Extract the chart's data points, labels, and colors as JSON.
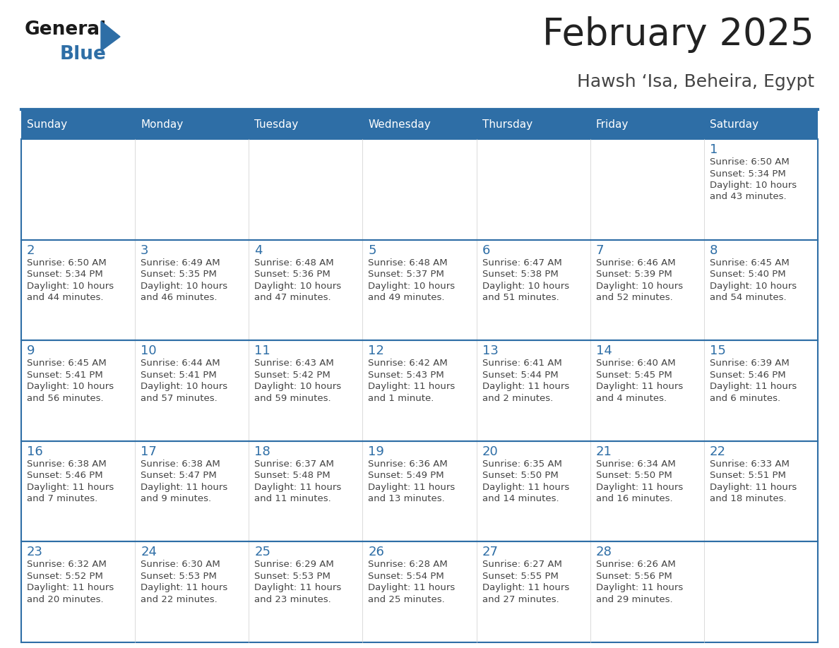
{
  "title": "February 2025",
  "subtitle": "Hawsh ‘Isa, Beheira, Egypt",
  "days_of_week": [
    "Sunday",
    "Monday",
    "Tuesday",
    "Wednesday",
    "Thursday",
    "Friday",
    "Saturday"
  ],
  "header_bg": "#2E6EA6",
  "header_text": "#FFFFFF",
  "cell_bg": "#FFFFFF",
  "cell_bg_alt": "#F2F2F2",
  "border_color": "#2E6EA6",
  "title_color": "#222222",
  "subtitle_color": "#444444",
  "day_number_color": "#2E6EA6",
  "cell_text_color": "#444444",
  "logo_text_color": "#1a1a1a",
  "logo_blue_color": "#2E6EA6",
  "calendar_data": [
    [
      null,
      null,
      null,
      null,
      null,
      null,
      {
        "day": 1,
        "sunrise": "6:50 AM",
        "sunset": "5:34 PM",
        "daylight": "10 hours and 43 minutes."
      }
    ],
    [
      {
        "day": 2,
        "sunrise": "6:50 AM",
        "sunset": "5:34 PM",
        "daylight": "10 hours and 44 minutes."
      },
      {
        "day": 3,
        "sunrise": "6:49 AM",
        "sunset": "5:35 PM",
        "daylight": "10 hours and 46 minutes."
      },
      {
        "day": 4,
        "sunrise": "6:48 AM",
        "sunset": "5:36 PM",
        "daylight": "10 hours and 47 minutes."
      },
      {
        "day": 5,
        "sunrise": "6:48 AM",
        "sunset": "5:37 PM",
        "daylight": "10 hours and 49 minutes."
      },
      {
        "day": 6,
        "sunrise": "6:47 AM",
        "sunset": "5:38 PM",
        "daylight": "10 hours and 51 minutes."
      },
      {
        "day": 7,
        "sunrise": "6:46 AM",
        "sunset": "5:39 PM",
        "daylight": "10 hours and 52 minutes."
      },
      {
        "day": 8,
        "sunrise": "6:45 AM",
        "sunset": "5:40 PM",
        "daylight": "10 hours and 54 minutes."
      }
    ],
    [
      {
        "day": 9,
        "sunrise": "6:45 AM",
        "sunset": "5:41 PM",
        "daylight": "10 hours and 56 minutes."
      },
      {
        "day": 10,
        "sunrise": "6:44 AM",
        "sunset": "5:41 PM",
        "daylight": "10 hours and 57 minutes."
      },
      {
        "day": 11,
        "sunrise": "6:43 AM",
        "sunset": "5:42 PM",
        "daylight": "10 hours and 59 minutes."
      },
      {
        "day": 12,
        "sunrise": "6:42 AM",
        "sunset": "5:43 PM",
        "daylight": "11 hours and 1 minute."
      },
      {
        "day": 13,
        "sunrise": "6:41 AM",
        "sunset": "5:44 PM",
        "daylight": "11 hours and 2 minutes."
      },
      {
        "day": 14,
        "sunrise": "6:40 AM",
        "sunset": "5:45 PM",
        "daylight": "11 hours and 4 minutes."
      },
      {
        "day": 15,
        "sunrise": "6:39 AM",
        "sunset": "5:46 PM",
        "daylight": "11 hours and 6 minutes."
      }
    ],
    [
      {
        "day": 16,
        "sunrise": "6:38 AM",
        "sunset": "5:46 PM",
        "daylight": "11 hours and 7 minutes."
      },
      {
        "day": 17,
        "sunrise": "6:38 AM",
        "sunset": "5:47 PM",
        "daylight": "11 hours and 9 minutes."
      },
      {
        "day": 18,
        "sunrise": "6:37 AM",
        "sunset": "5:48 PM",
        "daylight": "11 hours and 11 minutes."
      },
      {
        "day": 19,
        "sunrise": "6:36 AM",
        "sunset": "5:49 PM",
        "daylight": "11 hours and 13 minutes."
      },
      {
        "day": 20,
        "sunrise": "6:35 AM",
        "sunset": "5:50 PM",
        "daylight": "11 hours and 14 minutes."
      },
      {
        "day": 21,
        "sunrise": "6:34 AM",
        "sunset": "5:50 PM",
        "daylight": "11 hours and 16 minutes."
      },
      {
        "day": 22,
        "sunrise": "6:33 AM",
        "sunset": "5:51 PM",
        "daylight": "11 hours and 18 minutes."
      }
    ],
    [
      {
        "day": 23,
        "sunrise": "6:32 AM",
        "sunset": "5:52 PM",
        "daylight": "11 hours and 20 minutes."
      },
      {
        "day": 24,
        "sunrise": "6:30 AM",
        "sunset": "5:53 PM",
        "daylight": "11 hours and 22 minutes."
      },
      {
        "day": 25,
        "sunrise": "6:29 AM",
        "sunset": "5:53 PM",
        "daylight": "11 hours and 23 minutes."
      },
      {
        "day": 26,
        "sunrise": "6:28 AM",
        "sunset": "5:54 PM",
        "daylight": "11 hours and 25 minutes."
      },
      {
        "day": 27,
        "sunrise": "6:27 AM",
        "sunset": "5:55 PM",
        "daylight": "11 hours and 27 minutes."
      },
      {
        "day": 28,
        "sunrise": "6:26 AM",
        "sunset": "5:56 PM",
        "daylight": "11 hours and 29 minutes."
      },
      null
    ]
  ]
}
